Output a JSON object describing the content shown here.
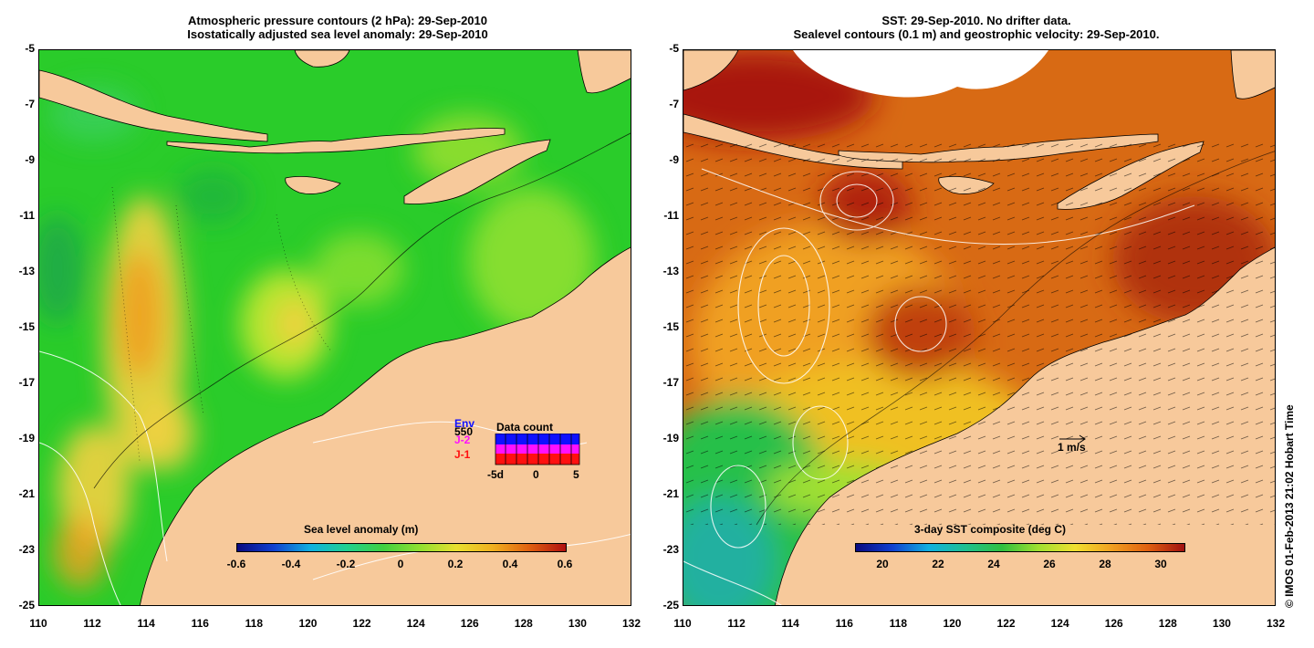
{
  "left_panel": {
    "title_line1": "Atmospheric pressure contours (2 hPa): 29-Sep-2010",
    "title_line2": "Isostatically adjusted sea level anomaly: 29-Sep-2010",
    "colorbar_label": "Sea level anomaly (m)",
    "colorbar_ticks": [
      "-0.6",
      "-0.4",
      "-0.2",
      "0",
      "0.2",
      "0.4",
      "0.6"
    ],
    "inset": {
      "title": "Data count",
      "sat_labels": [
        "Env",
        "J-2",
        "J-1"
      ],
      "count_label": "550",
      "sat_colors": [
        "#1010ff",
        "#ff10ff",
        "#ff1010"
      ],
      "x_ticks": [
        "-5d",
        "0",
        "5"
      ]
    }
  },
  "right_panel": {
    "title_line1": "SST: 29-Sep-2010. No drifter data.",
    "title_line2": "Sealevel contours (0.1 m) and geostrophic velocity: 29-Sep-2010.",
    "colorbar_label": "3-day SST composite (deg C)",
    "colorbar_ticks": [
      "20",
      "22",
      "24",
      "26",
      "28",
      "30"
    ],
    "velocity_scale_label": "1 m/s"
  },
  "axes": {
    "y_ticks": [
      "-5",
      "-7",
      "-9",
      "-11",
      "-13",
      "-15",
      "-17",
      "-19",
      "-21",
      "-23",
      "-25"
    ],
    "x_ticks": [
      "110",
      "112",
      "114",
      "116",
      "118",
      "120",
      "122",
      "124",
      "126",
      "128",
      "130",
      "132"
    ]
  },
  "credit": "© IMOS 01-Feb-2013 21:02 Hobart Time",
  "colors": {
    "land": "#f7c99b",
    "ocean_base": "#22cc22",
    "sst_warm": "#d45a10",
    "sst_hot": "#a81810"
  }
}
